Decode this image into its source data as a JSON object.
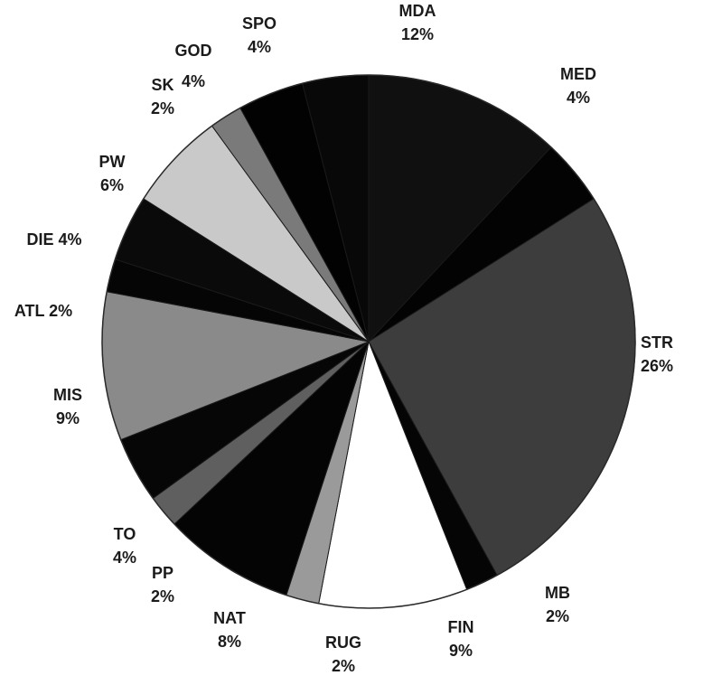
{
  "chart_data": {
    "type": "pie",
    "start_direction": "up",
    "direction": "clockwise",
    "slices": [
      {
        "label": "MDA",
        "pct_label": "12%",
        "value": 12,
        "color": "#101010"
      },
      {
        "label": "MED",
        "pct_label": "4%",
        "value": 4,
        "color": "#030303"
      },
      {
        "label": "STR",
        "pct_label": "26%",
        "value": 26,
        "color": "#3d3d3d"
      },
      {
        "label": "MB",
        "pct_label": "2%",
        "value": 2,
        "color": "#050505"
      },
      {
        "label": "FIN",
        "pct_label": "9%",
        "value": 9,
        "color": "#ffffff"
      },
      {
        "label": "RUG",
        "pct_label": "2%",
        "value": 2,
        "color": "#9a9a9a"
      },
      {
        "label": "NAT",
        "pct_label": "8%",
        "value": 8,
        "color": "#040404"
      },
      {
        "label": "PP",
        "pct_label": "2%",
        "value": 2,
        "color": "#5f5f5f"
      },
      {
        "label": "TO",
        "pct_label": "4%",
        "value": 4,
        "color": "#060606"
      },
      {
        "label": "MIS",
        "pct_label": "9%",
        "value": 9,
        "color": "#8a8a8a"
      },
      {
        "label": "ATL",
        "pct_label": "2%",
        "value": 2,
        "color": "#050505"
      },
      {
        "label": "DIE",
        "pct_label": "4%",
        "value": 4,
        "color": "#0a0a0a"
      },
      {
        "label": "PW",
        "pct_label": "6%",
        "value": 6,
        "color": "#c9c9c9"
      },
      {
        "label": "SK",
        "pct_label": "2%",
        "value": 2,
        "color": "#7a7a7a"
      },
      {
        "label": "GOD",
        "pct_label": "4%",
        "value": 4,
        "color": "#020202"
      },
      {
        "label": "SPO",
        "pct_label": "4%",
        "value": 4,
        "color": "#080808"
      }
    ]
  }
}
